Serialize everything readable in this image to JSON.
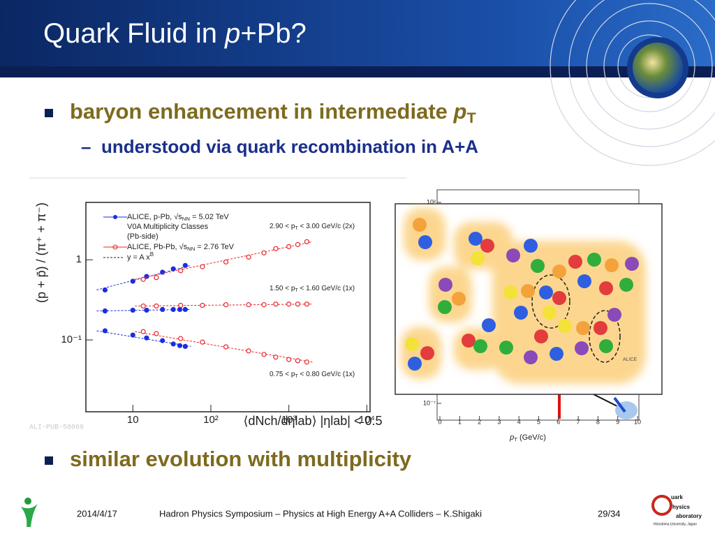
{
  "header": {
    "title": [
      "Quark Fluid in ",
      "p",
      "+Pb?"
    ]
  },
  "bullets": [
    {
      "text": [
        "baryon enhancement in intermediate ",
        "p",
        "T"
      ],
      "sub": [
        "understood via quark recombination in A+A"
      ]
    },
    {
      "text": [
        "similar evolution with multiplicity"
      ]
    }
  ],
  "left_plot": {
    "y_label": "(p + p̄) / (π⁺ + π⁻)",
    "x_label": "⟨dNch/dηlab⟩ |ηlab| < 0.5",
    "watermark": "ALI-PUB-58069",
    "log": true,
    "xlim": [
      2.5,
      11000
    ],
    "ylim": [
      0.0127,
      5.2
    ],
    "xticks": [
      10,
      {
        "value": 100,
        "label": "10²"
      },
      {
        "value": 1000,
        "label": "10³"
      },
      {
        "value": 10000,
        "label": "10⁴"
      }
    ],
    "yticks": [
      1,
      {
        "value": 0.1,
        "label": "10⁻¹"
      }
    ],
    "legend": [
      [
        "ALICE, p-Pb, √s",
        "NN",
        " = 5.02 TeV"
      ],
      [
        "V0A Multiplicity Classes"
      ],
      [
        "(Pb-side)"
      ],
      [
        "ALICE, Pb-Pb, √s",
        "NN",
        " = 2.76 TeV"
      ],
      [
        "y = A x",
        "B"
      ]
    ],
    "annotations": [
      [
        "2.90 < p",
        "T",
        " < 3.00 GeV/c (2x)"
      ],
      [
        "1.50 < p",
        "T",
        " < 1.60 GeV/c (1x)"
      ],
      [
        "0.75 < p",
        "T",
        " < 0.80 GeV/c (1x)"
      ]
    ],
    "series": [
      {
        "color": "#1a2ee0",
        "marker": "filled",
        "groups": [
          {
            "x": [
              4.4,
              10,
              15,
              24,
              33,
              47
            ],
            "y": [
              0.42,
              0.54,
              0.62,
              0.7,
              0.77,
              0.85
            ]
          },
          {
            "x": [
              4.4,
              10,
              15,
              24,
              33,
              40,
              47
            ],
            "y": [
              0.23,
              0.235,
              0.235,
              0.24,
              0.24,
              0.24,
              0.24
            ]
          },
          {
            "x": [
              4.4,
              10,
              15,
              24,
              33,
              40,
              47
            ],
            "y": [
              0.13,
              0.115,
              0.106,
              0.098,
              0.089,
              0.085,
              0.083
            ]
          }
        ]
      },
      {
        "color": "#e8242a",
        "marker": "open",
        "groups": [
          {
            "x": [
              13.6,
              20,
              41,
              78,
              156,
              305,
              480,
              680,
              1000,
              1300,
              1700
            ],
            "y": [
              0.57,
              0.6,
              0.73,
              0.82,
              0.94,
              1.08,
              1.22,
              1.38,
              1.46,
              1.55,
              1.68
            ]
          },
          {
            "x": [
              13.6,
              20,
              41,
              78,
              156,
              305,
              480,
              680,
              1000,
              1300,
              1700
            ],
            "y": [
              0.265,
              0.265,
              0.27,
              0.27,
              0.275,
              0.275,
              0.275,
              0.28,
              0.28,
              0.28,
              0.28
            ]
          },
          {
            "x": [
              13.6,
              20,
              41,
              78,
              156,
              305,
              480,
              680,
              1000,
              1300,
              1700
            ],
            "y": [
              0.127,
              0.12,
              0.104,
              0.094,
              0.082,
              0.073,
              0.066,
              0.061,
              0.057,
              0.055,
              0.053
            ]
          }
        ]
      }
    ]
  },
  "right_plot": {
    "x_label": [
      "p",
      "T",
      " (GeV/c)"
    ],
    "xticks": [
      0,
      1,
      2,
      3,
      4,
      5,
      6,
      7,
      8,
      9,
      10
    ],
    "yticks": [
      {
        "value": 100,
        "label": "10²"
      },
      {
        "value": 1e-07,
        "label": "10⁻⁷"
      }
    ],
    "badge": "ALICE"
  },
  "footer": {
    "date": "2014/4/17",
    "event": "Hadron Physics Symposium – Physics at High Energy A+A Colliders – K.Shigaki",
    "page": "29/34",
    "logo": [
      "uark",
      "hysics",
      "aboratory",
      "Hiroshima University, Japan"
    ]
  }
}
